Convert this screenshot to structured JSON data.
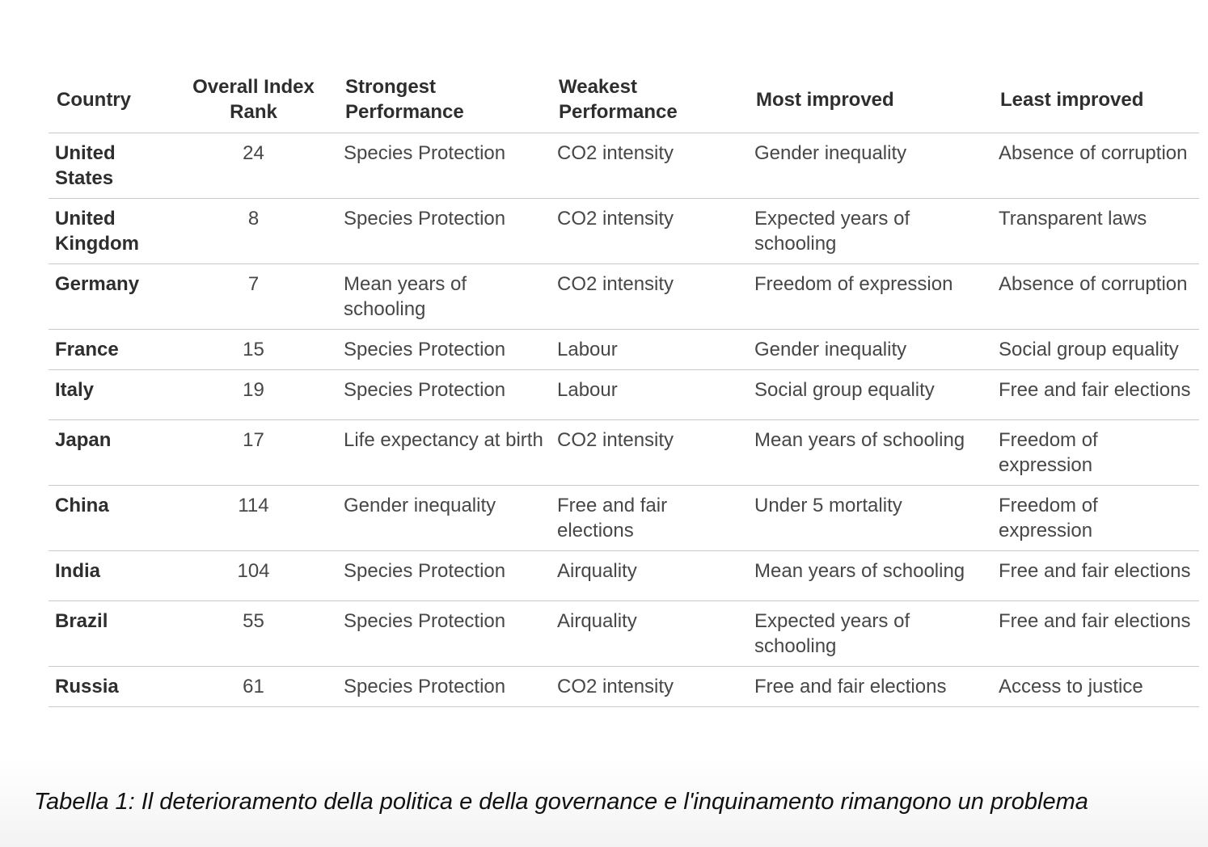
{
  "table": {
    "headers": [
      "Country",
      "Overall Index Rank",
      "Strongest Performance",
      "Weakest Performance",
      "Most improved",
      "Least improved"
    ],
    "rows": [
      {
        "country": "United States",
        "rank": "24",
        "strongest": "Species Protection",
        "weakest": "CO2 intensity",
        "most_improved": "Gender inequality",
        "least_improved": "Absence of corruption"
      },
      {
        "country": "United Kingdom",
        "rank": "8",
        "strongest": "Species Protection",
        "weakest": "CO2 intensity",
        "most_improved": "Expected years of schooling",
        "least_improved": "Transparent laws"
      },
      {
        "country": "Germany",
        "rank": "7",
        "strongest": "Mean years of schooling",
        "weakest": "CO2 intensity",
        "most_improved": "Freedom of expression",
        "least_improved": "Absence of corruption"
      },
      {
        "country": "France",
        "rank": "15",
        "strongest": "Species Protection",
        "weakest": "Labour",
        "most_improved": "Gender inequality",
        "least_improved": "Social group equality"
      },
      {
        "country": "Italy",
        "rank": "19",
        "strongest": "Species Protection",
        "weakest": "Labour",
        "most_improved": "Social group equality",
        "least_improved": "Free and fair elections"
      },
      {
        "country": "Japan",
        "rank": "17",
        "strongest": "Life expectancy at birth",
        "weakest": "CO2 intensity",
        "most_improved": "Mean years of schooling",
        "least_improved": "Freedom of expression"
      },
      {
        "country": "China",
        "rank": "114",
        "strongest": "Gender inequality",
        "weakest": "Free and fair elections",
        "most_improved": "Under 5 mortality",
        "least_improved": "Freedom of expression"
      },
      {
        "country": "India",
        "rank": "104",
        "strongest": "Species Protection",
        "weakest": "Airquality",
        "most_improved": "Mean years of schooling",
        "least_improved": "Free and fair elections"
      },
      {
        "country": "Brazil",
        "rank": "55",
        "strongest": "Species Protection",
        "weakest": "Airquality",
        "most_improved": "Expected years of schooling",
        "least_improved": "Free and fair elections"
      },
      {
        "country": "Russia",
        "rank": "61",
        "strongest": "Species Protection",
        "weakest": "CO2 intensity",
        "most_improved": "Free and fair elections",
        "least_improved": "Access to justice"
      }
    ]
  },
  "caption": "Tabella 1: Il deterioramento della politica e della governance e l'inquinamento rimangono un problema"
}
